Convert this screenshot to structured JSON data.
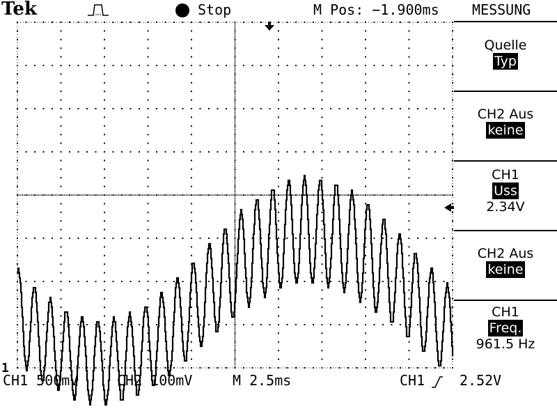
{
  "header": {
    "brand": "Tek",
    "run_state": "Stop",
    "m_pos": "M Pos: −1.900ms",
    "menu_title": "MESSUNG"
  },
  "menu": [
    {
      "label": "Quelle",
      "value": "Typ",
      "reading": ""
    },
    {
      "label": "CH2 Aus",
      "value": "keine",
      "reading": ""
    },
    {
      "label": "CH1",
      "value": "Uss",
      "reading": "2.34V"
    },
    {
      "label": "CH2 Aus",
      "value": "keine",
      "reading": ""
    },
    {
      "label": "CH1",
      "value": "Freq.",
      "reading": "961.5 Hz"
    }
  ],
  "footer": {
    "ch1_scale": "CH1 500mV",
    "ch2_scale": "CH2 100mV",
    "timebase": "M 2.5ms",
    "trigger_source": "CH1",
    "trigger_level": "2.52V",
    "ground_marker": "1"
  },
  "waveform": {
    "color": "#000000",
    "carrier_cycles": 27.4,
    "envelope": "sinusoidal"
  }
}
